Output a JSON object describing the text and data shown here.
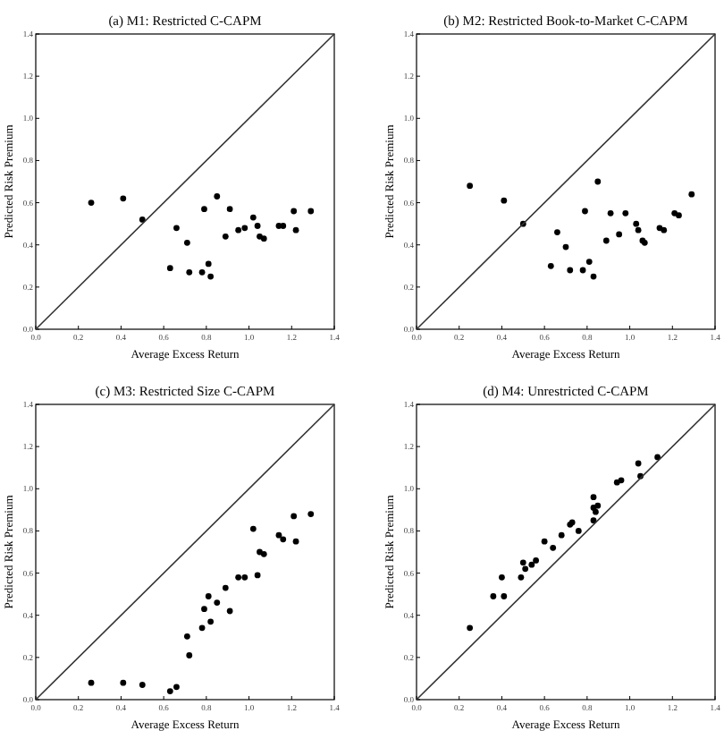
{
  "chart_data": [
    {
      "type": "scatter",
      "title": "(a) M1: Restricted C-CAPM",
      "xlabel": "Average Excess Return",
      "ylabel": "Predicted Risk Premium",
      "xlim": [
        0,
        1.4
      ],
      "ylim": [
        0,
        1.4
      ],
      "xticks": [
        {
          "value": 0,
          "label": "0.0"
        },
        {
          "value": 0.2,
          "label": "0.2"
        },
        {
          "value": 0.4,
          "label": "0.4"
        },
        {
          "value": 0.6,
          "label": "0.6"
        },
        {
          "value": 0.8,
          "label": "0.8"
        },
        {
          "value": 1,
          "label": "1.0"
        },
        {
          "value": 1.2,
          "label": "1.2"
        },
        {
          "value": 1.4,
          "label": "1.4"
        }
      ],
      "yticks": [
        {
          "value": 0,
          "label": "0.0"
        },
        {
          "value": 0.2,
          "label": "0.2"
        },
        {
          "value": 0.4,
          "label": "0.4"
        },
        {
          "value": 0.6,
          "label": "0.6"
        },
        {
          "value": 0.8,
          "label": "0.8"
        },
        {
          "value": 1,
          "label": "1.0"
        },
        {
          "value": 1.2,
          "label": "1.2"
        },
        {
          "value": 1.4,
          "label": "1.4"
        }
      ],
      "grid": false,
      "series": [
        {
          "marker": "circle",
          "color": "#000000",
          "x": [
            0.26,
            0.41,
            0.5,
            0.66,
            0.63,
            0.71,
            0.72,
            0.79,
            0.78,
            0.81,
            0.82,
            0.85,
            0.91,
            0.89,
            0.95,
            0.98,
            1.02,
            1.04,
            1.05,
            1.07,
            1.14,
            1.16,
            1.21,
            1.22,
            1.29
          ],
          "values": [
            0.6,
            0.62,
            0.52,
            0.48,
            0.29,
            0.41,
            0.27,
            0.57,
            0.27,
            0.31,
            0.25,
            0.63,
            0.57,
            0.44,
            0.47,
            0.48,
            0.53,
            0.49,
            0.44,
            0.43,
            0.49,
            0.49,
            0.56,
            0.47,
            0.56
          ]
        },
        {
          "type": "line",
          "color": "#333333",
          "line_style": "solid",
          "x": [
            0,
            1.4
          ],
          "values": [
            0,
            1.4
          ]
        }
      ]
    },
    {
      "type": "scatter",
      "title": "(b) M2: Restricted Book-to-Market C-CAPM",
      "xlabel": "Average Excess Return",
      "ylabel": "Predicted Risk Premium",
      "xlim": [
        0,
        1.4
      ],
      "ylim": [
        0,
        1.4
      ],
      "xticks": [
        {
          "value": 0,
          "label": "0.0"
        },
        {
          "value": 0.2,
          "label": "0.2"
        },
        {
          "value": 0.4,
          "label": "0.4"
        },
        {
          "value": 0.6,
          "label": "0.6"
        },
        {
          "value": 0.8,
          "label": "0.8"
        },
        {
          "value": 1,
          "label": "1.0"
        },
        {
          "value": 1.2,
          "label": "1.2"
        },
        {
          "value": 1.4,
          "label": "1.4"
        }
      ],
      "yticks": [
        {
          "value": 0,
          "label": "0.0"
        },
        {
          "value": 0.2,
          "label": "0.2"
        },
        {
          "value": 0.4,
          "label": "0.4"
        },
        {
          "value": 0.6,
          "label": "0.6"
        },
        {
          "value": 0.8,
          "label": "0.8"
        },
        {
          "value": 1,
          "label": "1.0"
        },
        {
          "value": 1.2,
          "label": "1.2"
        },
        {
          "value": 1.4,
          "label": "1.4"
        }
      ],
      "grid": false,
      "series": [
        {
          "marker": "circle",
          "color": "#000000",
          "x": [
            0.25,
            0.41,
            0.5,
            0.66,
            0.63,
            0.7,
            0.72,
            0.79,
            0.78,
            0.81,
            0.83,
            0.85,
            0.91,
            0.89,
            0.95,
            0.98,
            1.03,
            1.04,
            1.06,
            1.07,
            1.14,
            1.16,
            1.21,
            1.23,
            1.29
          ],
          "values": [
            0.68,
            0.61,
            0.5,
            0.46,
            0.3,
            0.39,
            0.28,
            0.56,
            0.28,
            0.32,
            0.25,
            0.7,
            0.55,
            0.42,
            0.45,
            0.55,
            0.5,
            0.47,
            0.42,
            0.41,
            0.48,
            0.47,
            0.55,
            0.54,
            0.64
          ]
        },
        {
          "type": "line",
          "color": "#333333",
          "line_style": "solid",
          "x": [
            0,
            1.4
          ],
          "values": [
            0,
            1.4
          ]
        }
      ]
    },
    {
      "type": "scatter",
      "title": "(c) M3: Restricted Size C-CAPM",
      "xlabel": "Average Excess Return",
      "ylabel": "Predicted Risk Premium",
      "xlim": [
        0,
        1.4
      ],
      "ylim": [
        0,
        1.4
      ],
      "xticks": [
        {
          "value": 0,
          "label": "0.0"
        },
        {
          "value": 0.2,
          "label": "0.2"
        },
        {
          "value": 0.4,
          "label": "0.4"
        },
        {
          "value": 0.6,
          "label": "0.6"
        },
        {
          "value": 0.8,
          "label": "0.8"
        },
        {
          "value": 1,
          "label": "1.0"
        },
        {
          "value": 1.2,
          "label": "1.2"
        },
        {
          "value": 1.4,
          "label": "1.4"
        }
      ],
      "yticks": [
        {
          "value": 0,
          "label": "0.0"
        },
        {
          "value": 0.2,
          "label": "0.2"
        },
        {
          "value": 0.4,
          "label": "0.4"
        },
        {
          "value": 0.6,
          "label": "0.6"
        },
        {
          "value": 0.8,
          "label": "0.8"
        },
        {
          "value": 1,
          "label": "1.0"
        },
        {
          "value": 1.2,
          "label": "1.2"
        },
        {
          "value": 1.4,
          "label": "1.4"
        }
      ],
      "grid": false,
      "series": [
        {
          "marker": "circle",
          "color": "#000000",
          "x": [
            0.26,
            0.41,
            0.5,
            0.66,
            0.63,
            0.71,
            0.72,
            0.79,
            0.78,
            0.81,
            0.82,
            0.85,
            0.91,
            0.89,
            0.95,
            0.98,
            1.02,
            1.04,
            1.05,
            1.07,
            1.14,
            1.16,
            1.21,
            1.22,
            1.29
          ],
          "values": [
            0.08,
            0.08,
            0.07,
            0.06,
            0.04,
            0.3,
            0.21,
            0.43,
            0.34,
            0.49,
            0.37,
            0.46,
            0.42,
            0.53,
            0.58,
            0.58,
            0.81,
            0.59,
            0.7,
            0.69,
            0.78,
            0.76,
            0.87,
            0.75,
            0.88
          ]
        },
        {
          "type": "line",
          "color": "#333333",
          "line_style": "solid",
          "x": [
            0,
            1.4
          ],
          "values": [
            0,
            1.4
          ]
        }
      ]
    },
    {
      "type": "scatter",
      "title": "(d) M4: Unrestricted C-CAPM",
      "xlabel": "Average Excess Return",
      "ylabel": "Predicted Risk Premium",
      "xlim": [
        0,
        1.4
      ],
      "ylim": [
        0,
        1.4
      ],
      "xticks": [
        {
          "value": 0,
          "label": "0.0"
        },
        {
          "value": 0.2,
          "label": "0.2"
        },
        {
          "value": 0.4,
          "label": "0.4"
        },
        {
          "value": 0.6,
          "label": "0.6"
        },
        {
          "value": 0.8,
          "label": "0.8"
        },
        {
          "value": 1,
          "label": "1.0"
        },
        {
          "value": 1.2,
          "label": "1.2"
        },
        {
          "value": 1.4,
          "label": "1.4"
        }
      ],
      "yticks": [
        {
          "value": 0,
          "label": "0.0"
        },
        {
          "value": 0.2,
          "label": "0.2"
        },
        {
          "value": 0.4,
          "label": "0.4"
        },
        {
          "value": 0.6,
          "label": "0.6"
        },
        {
          "value": 0.8,
          "label": "0.8"
        },
        {
          "value": 1,
          "label": "1.0"
        },
        {
          "value": 1.2,
          "label": "1.2"
        },
        {
          "value": 1.4,
          "label": "1.4"
        }
      ],
      "grid": false,
      "series": [
        {
          "marker": "circle",
          "color": "#000000",
          "x": [
            0.25,
            0.36,
            0.4,
            0.41,
            0.49,
            0.5,
            0.51,
            0.54,
            0.56,
            0.6,
            0.64,
            0.68,
            0.72,
            0.73,
            0.76,
            0.83,
            0.83,
            0.83,
            0.84,
            0.85,
            0.94,
            0.96,
            1.04,
            1.05,
            1.13
          ],
          "values": [
            0.34,
            0.49,
            0.58,
            0.49,
            0.58,
            0.65,
            0.62,
            0.64,
            0.66,
            0.75,
            0.72,
            0.78,
            0.83,
            0.84,
            0.8,
            0.85,
            0.96,
            0.91,
            0.89,
            0.92,
            1.03,
            1.04,
            1.12,
            1.06,
            1.15
          ]
        },
        {
          "type": "line",
          "color": "#333333",
          "line_style": "solid",
          "x": [
            0,
            1.4
          ],
          "values": [
            0,
            1.4
          ]
        }
      ]
    }
  ]
}
